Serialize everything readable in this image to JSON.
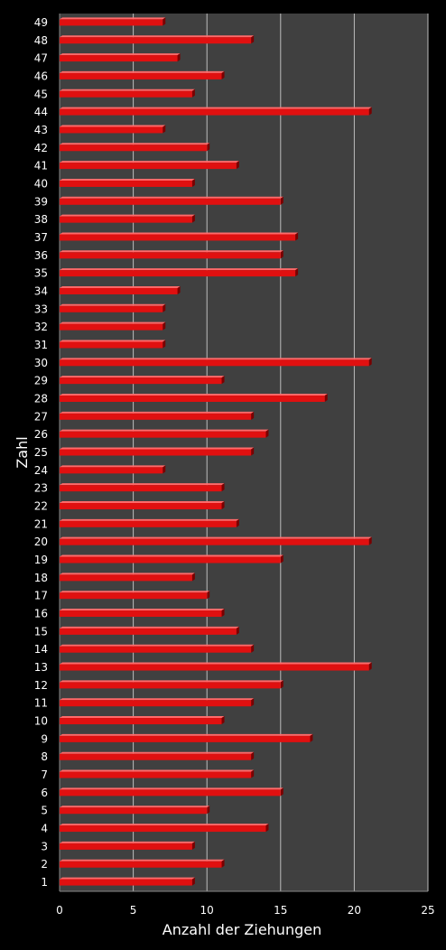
{
  "chart_data": {
    "type": "bar",
    "orientation": "horizontal",
    "xlabel": "Anzahl der Ziehungen",
    "ylabel": "Zahl",
    "xlim": [
      0,
      25
    ],
    "xticks": [
      0,
      5,
      10,
      15,
      20,
      25
    ],
    "grid": "vertical",
    "categories": [
      "1",
      "2",
      "3",
      "4",
      "5",
      "6",
      "7",
      "8",
      "9",
      "10",
      "11",
      "12",
      "13",
      "14",
      "15",
      "16",
      "17",
      "18",
      "19",
      "20",
      "21",
      "22",
      "23",
      "24",
      "25",
      "26",
      "27",
      "28",
      "29",
      "30",
      "31",
      "32",
      "33",
      "34",
      "35",
      "36",
      "37",
      "38",
      "39",
      "40",
      "41",
      "42",
      "43",
      "44",
      "45",
      "46",
      "47",
      "48",
      "49"
    ],
    "values": [
      9,
      11,
      9,
      14,
      10,
      15,
      13,
      13,
      17,
      11,
      13,
      15,
      21,
      13,
      12,
      11,
      10,
      9,
      15,
      21,
      12,
      11,
      11,
      7,
      13,
      14,
      13,
      18,
      11,
      21,
      7,
      7,
      7,
      8,
      16,
      15,
      16,
      9,
      15,
      9,
      12,
      10,
      7,
      21,
      9,
      11,
      8,
      13,
      7
    ],
    "colors": {
      "bar": "#e01010",
      "bar_highlight": "#ff6a6a",
      "bar_shadow": "#7a0000",
      "plot_bg": "#404040",
      "grid": "#bdbdbd",
      "background": "#000000",
      "text": "#ffffff"
    }
  }
}
